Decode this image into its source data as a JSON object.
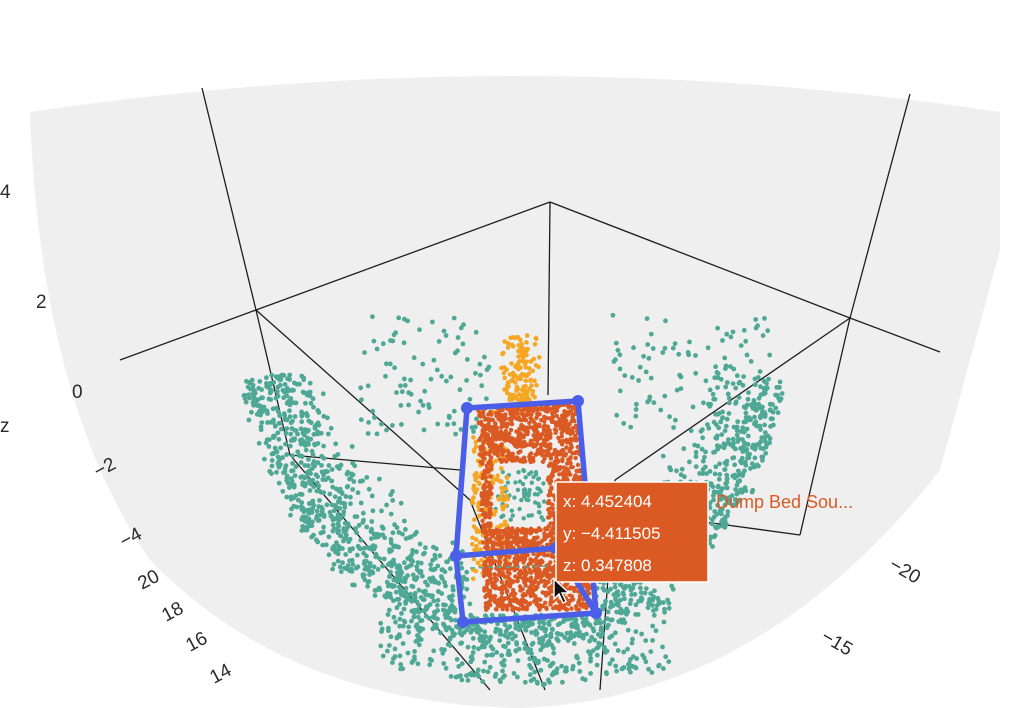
{
  "chart_data": {
    "type": "scatter",
    "title": "",
    "axes": {
      "z": {
        "label": "z",
        "tick_labels": [
          "4",
          "2",
          "0",
          "−2",
          "−4"
        ]
      },
      "x": {
        "tick_labels": [
          "20",
          "18",
          "16",
          "14"
        ]
      },
      "y": {
        "tick_labels": [
          "−20",
          "−15"
        ]
      }
    },
    "series": [
      {
        "color": "#4fa896",
        "role": "background point cloud"
      },
      {
        "color": "#f5a623",
        "role": "object point cloud"
      },
      {
        "name": "Dump Bed Sou...",
        "color": "#db5a24",
        "role": "selected object points"
      },
      {
        "color": "#4a5ee8",
        "role": "bounding box wireframe"
      }
    ],
    "hover": {
      "x_label": "x: 4.452404",
      "y_label": "y: −4.411505",
      "z_label": "z: 0.347808",
      "trace_name": "Dump Bed Sou...",
      "x": 4.452404,
      "y": -4.411505,
      "z": 0.347808
    },
    "grid": true,
    "background": "#efefef"
  }
}
